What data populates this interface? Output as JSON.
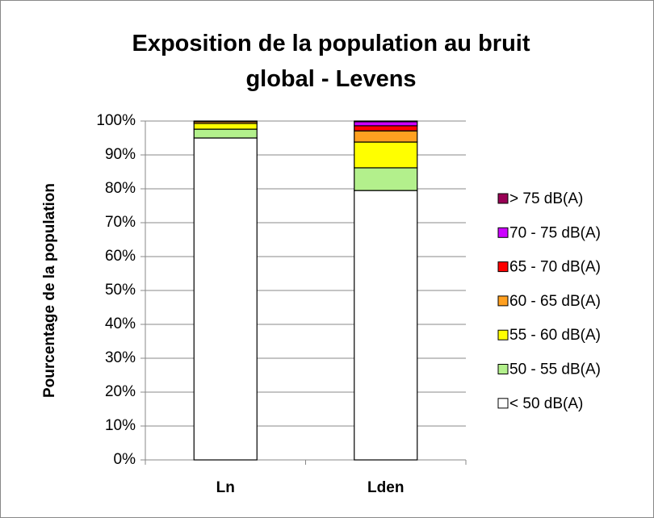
{
  "chart_data": {
    "type": "stacked_bar",
    "title": "Exposition de la population au bruit global - Levens",
    "ylabel": "Pourcentage de la population",
    "categories": [
      "Ln",
      "Lden"
    ],
    "series": [
      {
        "name": "< 50 dB(A)",
        "color": "#ffffff",
        "values": [
          95.0,
          79.5
        ]
      },
      {
        "name": "50 - 55 dB(A)",
        "color": "#b3f08c",
        "values": [
          2.6,
          6.7
        ]
      },
      {
        "name": "55 - 60 dB(A)",
        "color": "#ffff00",
        "values": [
          1.7,
          7.6
        ]
      },
      {
        "name": "60 - 65 dB(A)",
        "color": "#ffa020",
        "values": [
          0.5,
          3.3
        ]
      },
      {
        "name": "65 - 70 dB(A)",
        "color": "#ff0000",
        "values": [
          0.2,
          1.5
        ]
      },
      {
        "name": "70 - 75 dB(A)",
        "color": "#cc00ff",
        "values": [
          0,
          1.2
        ]
      },
      {
        "name": "> 75 dB(A)",
        "color": "#990055",
        "values": [
          0,
          0.2
        ]
      }
    ],
    "ylim": [
      0,
      100
    ],
    "yticks": [
      {
        "value": 0,
        "label": "0%"
      },
      {
        "value": 10,
        "label": "10%"
      },
      {
        "value": 20,
        "label": "20%"
      },
      {
        "value": 30,
        "label": "30%"
      },
      {
        "value": 40,
        "label": "40%"
      },
      {
        "value": 50,
        "label": "50%"
      },
      {
        "value": 60,
        "label": "60%"
      },
      {
        "value": 70,
        "label": "70%"
      },
      {
        "value": 80,
        "label": "80%"
      },
      {
        "value": 90,
        "label": "90%"
      },
      {
        "value": 100,
        "label": "100%"
      }
    ],
    "grid": true,
    "legend": "right"
  }
}
